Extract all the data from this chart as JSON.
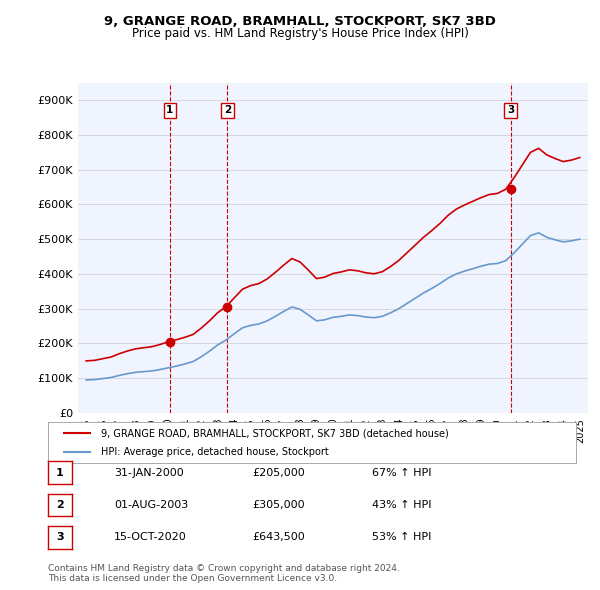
{
  "title": "9, GRANGE ROAD, BRAMHALL, STOCKPORT, SK7 3BD",
  "subtitle": "Price paid vs. HM Land Registry's House Price Index (HPI)",
  "ylabel": "",
  "ylim": [
    0,
    950000
  ],
  "yticks": [
    0,
    100000,
    200000,
    300000,
    400000,
    500000,
    600000,
    700000,
    800000,
    900000
  ],
  "ytick_labels": [
    "£0",
    "£100K",
    "£200K",
    "£300K",
    "£400K",
    "£500K",
    "£600K",
    "£700K",
    "£800K",
    "£900K"
  ],
  "sale_dates": [
    "2000-01-31",
    "2003-08-01",
    "2020-10-15"
  ],
  "sale_prices": [
    205000,
    305000,
    643500
  ],
  "sale_labels": [
    "1",
    "2",
    "3"
  ],
  "legend_line1": "9, GRANGE ROAD, BRAMHALL, STOCKPORT, SK7 3BD (detached house)",
  "legend_line2": "HPI: Average price, detached house, Stockport",
  "table_rows": [
    {
      "num": "1",
      "date": "31-JAN-2000",
      "price": "£205,000",
      "hpi": "67% ↑ HPI"
    },
    {
      "num": "2",
      "date": "01-AUG-2003",
      "price": "£305,000",
      "hpi": "43% ↑ HPI"
    },
    {
      "num": "3",
      "date": "15-OCT-2020",
      "price": "£643,500",
      "hpi": "53% ↑ HPI"
    }
  ],
  "footnote": "Contains HM Land Registry data © Crown copyright and database right 2024.\nThis data is licensed under the Open Government Licence v3.0.",
  "line_color_red": "#cc0000",
  "line_color_blue": "#6699cc",
  "vline_color": "#cc0000",
  "background_color": "#ffffff",
  "plot_bg_color": "#f0f4ff"
}
